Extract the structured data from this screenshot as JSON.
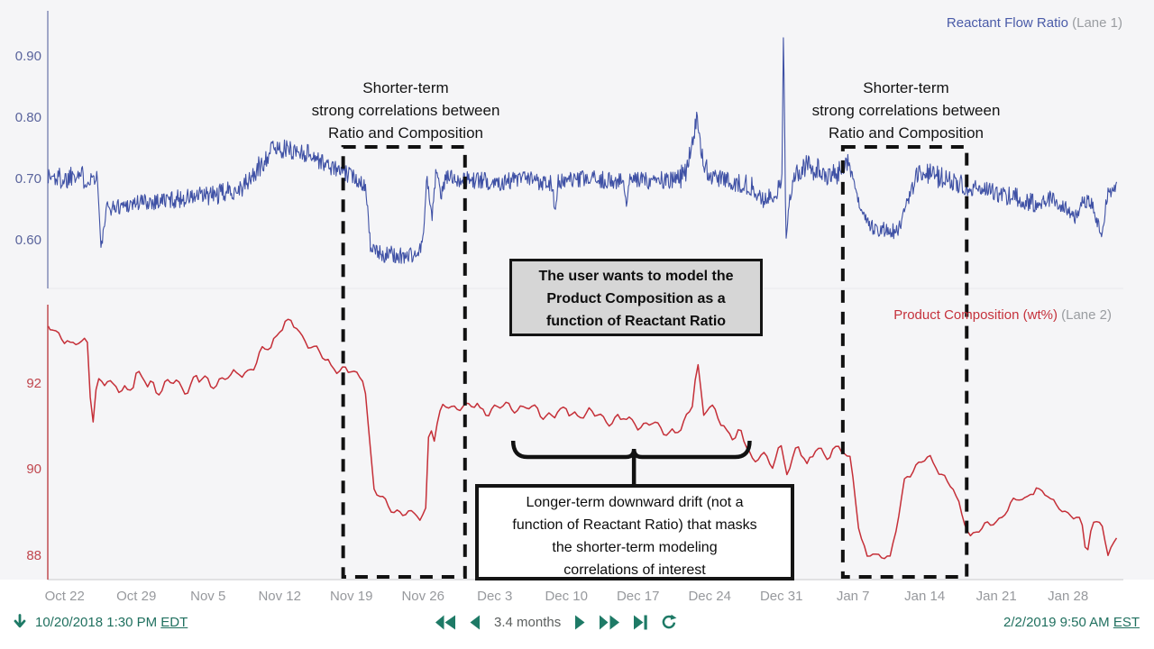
{
  "colors": {
    "toolbar_green": "#1e7a66",
    "callout_black": "#141414",
    "plot_background": "#f5f5f7",
    "x_tick_gray": "#97999d"
  },
  "legend": {
    "lane1": {
      "name": "Reactant Flow Ratio",
      "tag": " (Lane 1)"
    },
    "lane2": {
      "name": "Product Composition (wt%)",
      "tag": " (Lane 2)"
    }
  },
  "annotations": {
    "short_term_1": "Shorter-term\nstrong correlations between\nRatio and Composition",
    "short_term_2": "Shorter-term\nstrong correlations between\nRatio and Composition",
    "model_note": "The user wants to model the\nProduct Composition  as a\nfunction of Reactant Ratio",
    "drift_note": "Longer-term downward drift (not a\nfunction of Reactant Ratio) that masks\nthe shorter-term modeling\ncorrelations of interest"
  },
  "toolbar": {
    "start": {
      "date": "10/20/2018 1:30 PM",
      "tz": "EDT"
    },
    "end": {
      "date": "2/2/2019 9:50 AM",
      "tz": "EST"
    },
    "duration": "3.4 months",
    "icons": [
      "download-arrow-icon",
      "fast-backward-icon",
      "step-backward-icon",
      "step-forward-icon",
      "fast-forward-icon",
      "skip-to-end-icon",
      "refresh-icon"
    ]
  },
  "chart_data": {
    "type": "line",
    "x_axis": {
      "tick_labels": [
        "Oct 22",
        "Oct 29",
        "Nov 5",
        "Nov 12",
        "Nov 19",
        "Nov 26",
        "Dec 3",
        "Dec 10",
        "Dec 17",
        "Dec 24",
        "Dec 31",
        "Jan 7",
        "Jan 14",
        "Jan 21",
        "Jan 28"
      ],
      "tick_days": [
        2,
        9,
        16,
        23,
        30,
        37,
        44,
        51,
        58,
        65,
        72,
        79,
        86,
        93,
        100
      ],
      "domain_days": [
        0.3,
        104.8
      ],
      "start_label": "10/20/2018 1:30 PM EDT",
      "end_label": "2/2/2019 9:50 AM EST"
    },
    "highlight_regions": [
      {
        "start_day": 29.2,
        "end_day": 41.1
      },
      {
        "start_day": 78.0,
        "end_day": 90.1
      }
    ],
    "brace": {
      "start_day": 45.8,
      "end_day": 68.9,
      "center_day": 57.6
    },
    "lanes": [
      {
        "name": "Reactant Flow Ratio",
        "lane": 1,
        "color": "#3f51a5",
        "axis_color": "#8b93bb",
        "label_color": "#59639c",
        "stroke_width": 1.1,
        "noise_style": "jitter",
        "sample_step_days": 0.07,
        "y_ticks": [
          0.9,
          0.8,
          0.7,
          0.6
        ],
        "y_tick_labels": [
          "0.90",
          "0.80",
          "0.70",
          "0.60"
        ],
        "ylim": [
          0.525,
          0.975
        ],
        "anchors": [
          [
            0.3,
            0.705,
            0.018
          ],
          [
            2.2,
            0.7,
            0.02
          ],
          [
            3.0,
            0.715,
            0.02
          ],
          [
            4.0,
            0.7,
            0.018
          ],
          [
            5.2,
            0.705,
            0.012
          ],
          [
            5.55,
            0.585,
            0.008
          ],
          [
            6.1,
            0.652,
            0.012
          ],
          [
            9,
            0.662,
            0.015
          ],
          [
            13,
            0.668,
            0.015
          ],
          [
            17,
            0.675,
            0.017
          ],
          [
            19.5,
            0.688,
            0.016
          ],
          [
            21,
            0.718,
            0.02
          ],
          [
            22.3,
            0.752,
            0.014
          ],
          [
            24,
            0.748,
            0.016
          ],
          [
            26,
            0.742,
            0.016
          ],
          [
            27.3,
            0.726,
            0.014
          ],
          [
            29,
            0.713,
            0.013
          ],
          [
            30.5,
            0.702,
            0.014
          ],
          [
            31.4,
            0.69,
            0.012
          ],
          [
            31.9,
            0.585,
            0.01
          ],
          [
            33,
            0.578,
            0.014
          ],
          [
            35,
            0.575,
            0.015
          ],
          [
            36.6,
            0.578,
            0.013
          ],
          [
            37.1,
            0.615,
            0.008
          ],
          [
            37.35,
            0.705,
            0.008
          ],
          [
            37.9,
            0.638,
            0.01
          ],
          [
            38.3,
            0.72,
            0.01
          ],
          [
            38.7,
            0.672,
            0.01
          ],
          [
            39.3,
            0.705,
            0.012
          ],
          [
            41,
            0.7,
            0.014
          ],
          [
            44,
            0.696,
            0.015
          ],
          [
            47,
            0.7,
            0.015
          ],
          [
            49.6,
            0.695,
            0.015
          ],
          [
            49.9,
            0.645,
            0.006
          ],
          [
            50.2,
            0.695,
            0.014
          ],
          [
            53,
            0.7,
            0.015
          ],
          [
            56.6,
            0.697,
            0.014
          ],
          [
            56.85,
            0.652,
            0.006
          ],
          [
            57.1,
            0.697,
            0.014
          ],
          [
            59.5,
            0.7,
            0.016
          ],
          [
            61.5,
            0.695,
            0.018
          ],
          [
            62.6,
            0.71,
            0.02
          ],
          [
            63.3,
            0.765,
            0.02
          ],
          [
            63.75,
            0.8,
            0.012
          ],
          [
            64.2,
            0.74,
            0.018
          ],
          [
            65,
            0.705,
            0.015
          ],
          [
            67,
            0.697,
            0.015
          ],
          [
            69,
            0.69,
            0.016
          ],
          [
            70.3,
            0.665,
            0.014
          ],
          [
            71.3,
            0.672,
            0.018
          ],
          [
            72.05,
            0.7,
            0.01
          ],
          [
            72.2,
            0.943,
            0.004
          ],
          [
            72.45,
            0.6,
            0.005
          ],
          [
            72.8,
            0.665,
            0.01
          ],
          [
            73.3,
            0.71,
            0.014
          ],
          [
            74.5,
            0.72,
            0.02
          ],
          [
            76,
            0.712,
            0.02
          ],
          [
            77.3,
            0.705,
            0.018
          ],
          [
            78.4,
            0.732,
            0.018
          ],
          [
            79.1,
            0.7,
            0.012
          ],
          [
            79.7,
            0.648,
            0.01
          ],
          [
            80.4,
            0.625,
            0.013
          ],
          [
            82,
            0.618,
            0.014
          ],
          [
            83.4,
            0.613,
            0.013
          ],
          [
            84.2,
            0.655,
            0.012
          ],
          [
            85,
            0.7,
            0.018
          ],
          [
            86.2,
            0.712,
            0.018
          ],
          [
            87.5,
            0.703,
            0.018
          ],
          [
            89,
            0.695,
            0.016
          ],
          [
            91,
            0.685,
            0.015
          ],
          [
            93,
            0.678,
            0.015
          ],
          [
            95,
            0.67,
            0.016
          ],
          [
            96.5,
            0.662,
            0.017
          ],
          [
            98,
            0.67,
            0.015
          ],
          [
            99.3,
            0.66,
            0.016
          ],
          [
            100.8,
            0.638,
            0.012
          ],
          [
            101.4,
            0.668,
            0.012
          ],
          [
            102.3,
            0.663,
            0.013
          ],
          [
            103.3,
            0.607,
            0.007
          ],
          [
            103.8,
            0.672,
            0.012
          ],
          [
            104.8,
            0.695,
            0.01
          ]
        ]
      },
      {
        "name": "Product Composition (wt%)",
        "lane": 2,
        "color": "#c52f38",
        "axis_color": "#c4565a",
        "label_color": "#c0464d",
        "stroke_width": 1.5,
        "noise_style": "smooth",
        "sample_step_days": 0.28,
        "y_ticks": [
          92,
          90,
          88
        ],
        "y_tick_labels": [
          "92",
          "90",
          "88"
        ],
        "ylim": [
          87.45,
          93.85
        ],
        "anchors": [
          [
            0.3,
            93.3,
            0.06
          ],
          [
            1.6,
            93.15,
            0.07
          ],
          [
            3.0,
            92.9,
            0.09
          ],
          [
            4.3,
            93.0,
            0.05
          ],
          [
            4.65,
            90.8,
            0.03
          ],
          [
            5.15,
            92.15,
            0.05
          ],
          [
            6.5,
            91.9,
            0.12
          ],
          [
            9,
            92.05,
            0.16
          ],
          [
            12,
            91.95,
            0.16
          ],
          [
            15,
            92.05,
            0.15
          ],
          [
            18,
            92.1,
            0.13
          ],
          [
            20.5,
            92.45,
            0.12
          ],
          [
            22,
            92.9,
            0.12
          ],
          [
            23.5,
            93.45,
            0.08
          ],
          [
            24.6,
            93.3,
            0.09
          ],
          [
            26,
            92.95,
            0.1
          ],
          [
            27.5,
            92.5,
            0.09
          ],
          [
            29.5,
            92.3,
            0.09
          ],
          [
            31.3,
            92.1,
            0.06
          ],
          [
            32.2,
            89.55,
            0.06
          ],
          [
            33.5,
            89.15,
            0.08
          ],
          [
            35.5,
            88.98,
            0.07
          ],
          [
            36.7,
            88.88,
            0.05
          ],
          [
            37.25,
            89.05,
            0.04
          ],
          [
            37.6,
            91.15,
            0.05
          ],
          [
            38.1,
            90.72,
            0.05
          ],
          [
            38.8,
            91.45,
            0.08
          ],
          [
            40.5,
            91.52,
            0.1
          ],
          [
            43,
            91.4,
            0.11
          ],
          [
            46,
            91.5,
            0.11
          ],
          [
            49,
            91.32,
            0.11
          ],
          [
            52,
            91.35,
            0.1
          ],
          [
            55,
            91.2,
            0.1
          ],
          [
            58,
            91.12,
            0.11
          ],
          [
            60.5,
            90.95,
            0.1
          ],
          [
            62.3,
            90.92,
            0.08
          ],
          [
            63.3,
            91.55,
            0.06
          ],
          [
            63.8,
            92.6,
            0.05
          ],
          [
            64.4,
            91.35,
            0.06
          ],
          [
            65.2,
            91.45,
            0.07
          ],
          [
            66.5,
            90.95,
            0.1
          ],
          [
            68,
            90.8,
            0.12
          ],
          [
            69.3,
            90.15,
            0.1
          ],
          [
            70.2,
            90.55,
            0.09
          ],
          [
            71,
            89.95,
            0.08
          ],
          [
            71.9,
            90.6,
            0.09
          ],
          [
            72.6,
            89.95,
            0.08
          ],
          [
            73.5,
            90.6,
            0.09
          ],
          [
            74.5,
            90.05,
            0.09
          ],
          [
            75.5,
            90.6,
            0.08
          ],
          [
            76.6,
            90.3,
            0.09
          ],
          [
            77.6,
            90.5,
            0.07
          ],
          [
            78.8,
            90.3,
            0.06
          ],
          [
            79.6,
            88.5,
            0.05
          ],
          [
            80.4,
            87.98,
            0.06
          ],
          [
            81.6,
            88.1,
            0.08
          ],
          [
            82.6,
            87.92,
            0.05
          ],
          [
            83.3,
            88.65,
            0.06
          ],
          [
            84.1,
            89.9,
            0.07
          ],
          [
            85.2,
            90.1,
            0.09
          ],
          [
            86.4,
            90.28,
            0.08
          ],
          [
            87.5,
            90.0,
            0.08
          ],
          [
            88.6,
            89.6,
            0.08
          ],
          [
            89.6,
            89.0,
            0.07
          ],
          [
            90.4,
            88.5,
            0.06
          ],
          [
            91.2,
            88.6,
            0.06
          ],
          [
            92.6,
            88.72,
            0.08
          ],
          [
            94,
            89.1,
            0.09
          ],
          [
            95.6,
            89.32,
            0.08
          ],
          [
            96.9,
            89.6,
            0.06
          ],
          [
            98.2,
            89.3,
            0.08
          ],
          [
            99.3,
            89.15,
            0.08
          ],
          [
            100.3,
            88.9,
            0.07
          ],
          [
            101.3,
            88.82,
            0.06
          ],
          [
            101.8,
            87.98,
            0.04
          ],
          [
            102.35,
            88.82,
            0.05
          ],
          [
            103.3,
            88.78,
            0.05
          ],
          [
            103.85,
            87.92,
            0.04
          ],
          [
            104.35,
            88.28,
            0.04
          ],
          [
            104.8,
            88.5,
            0.04
          ]
        ]
      }
    ]
  }
}
